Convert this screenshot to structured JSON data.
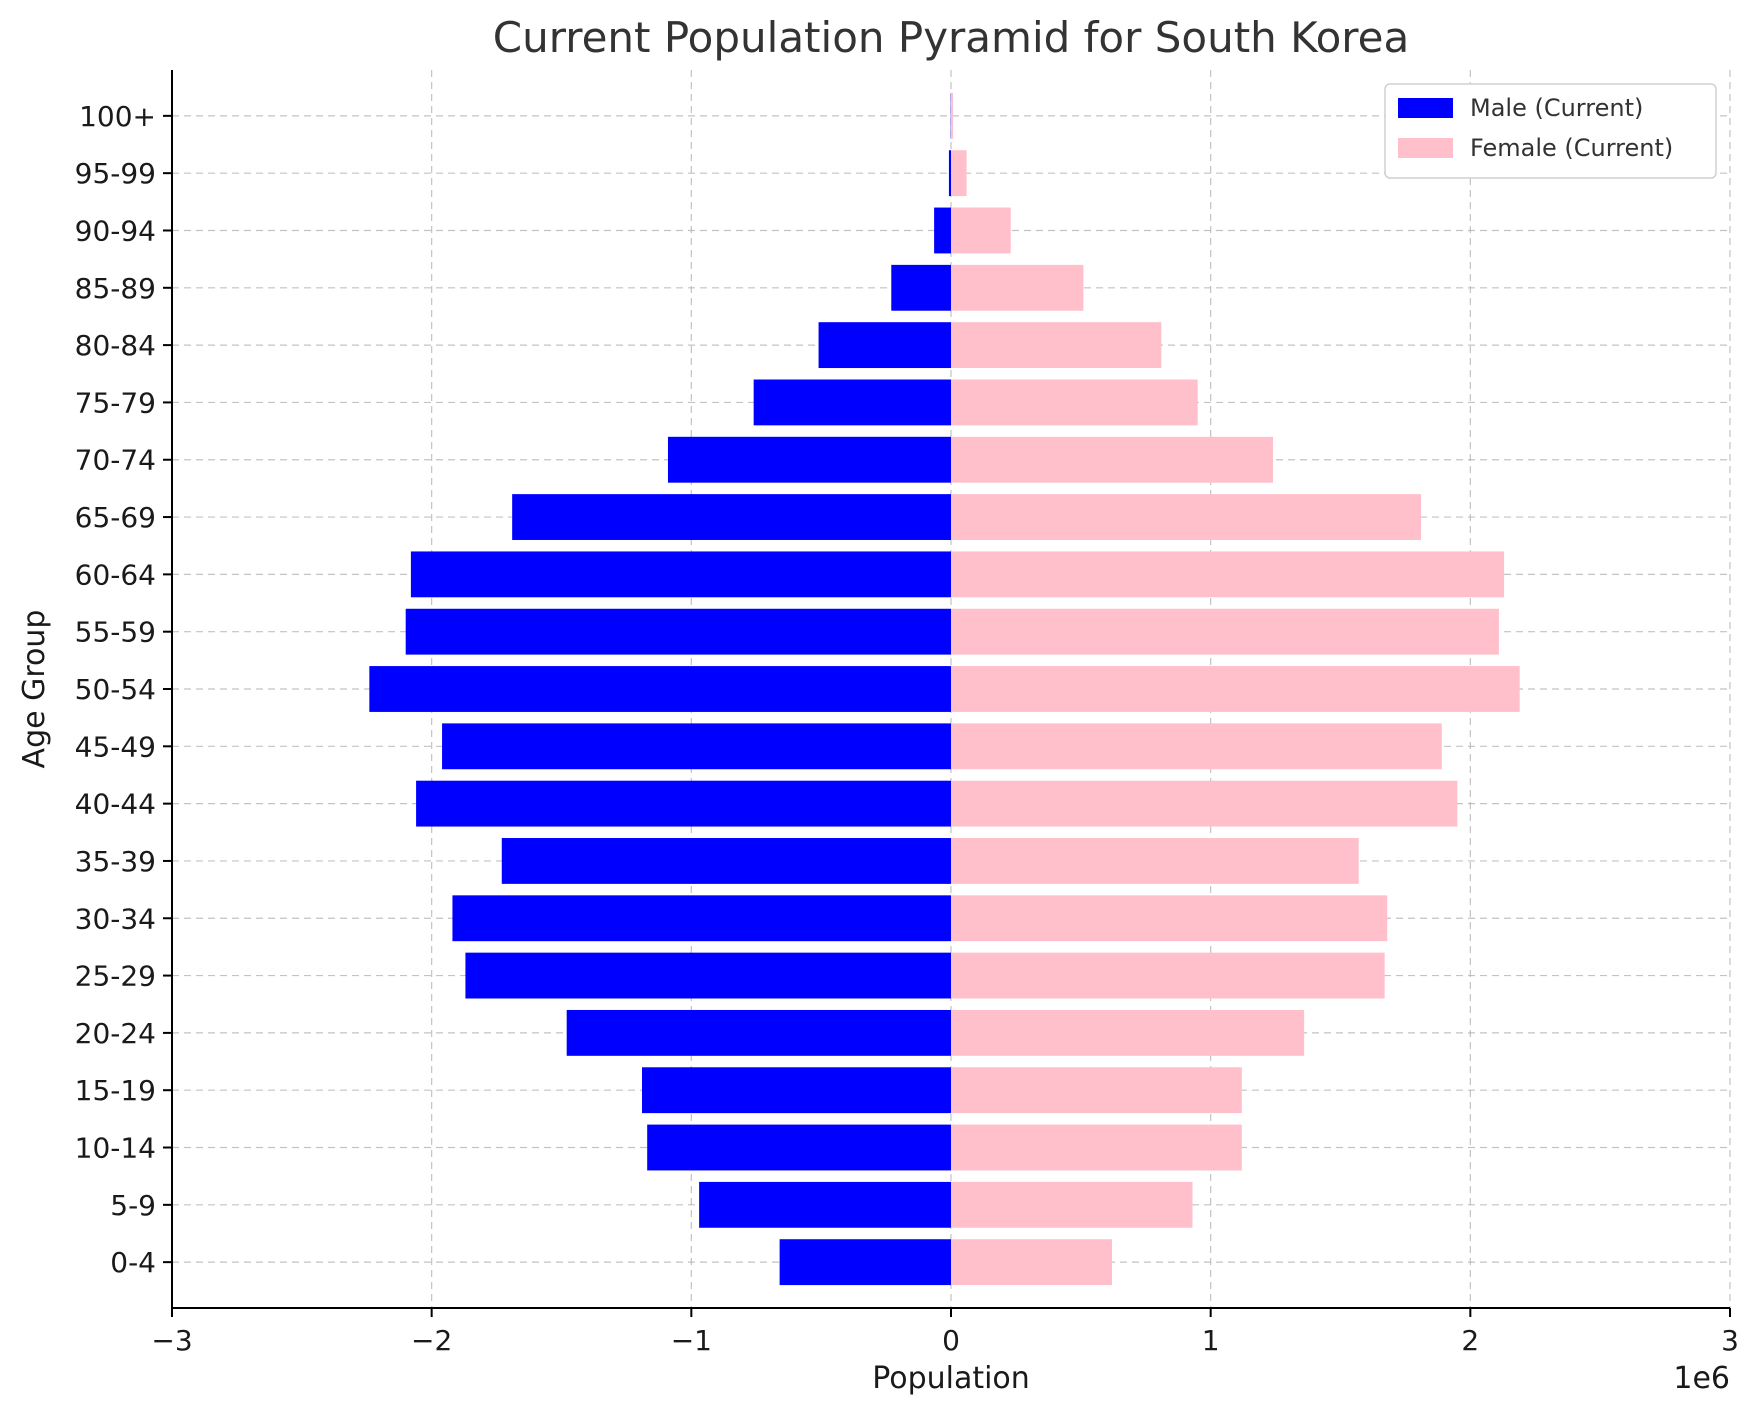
{
  "chart_data": {
    "type": "bar",
    "orientation": "horizontal",
    "title": "Current Population Pyramid for South Korea",
    "xlabel": "Population",
    "ylabel": "Age Group",
    "x_offset_text": "1e6",
    "xlim": [
      -3000000,
      3000000
    ],
    "xticks": [
      -3000000,
      -2000000,
      -1000000,
      0,
      1000000,
      2000000,
      3000000
    ],
    "xtick_labels": [
      "−3",
      "−2",
      "−1",
      "0",
      "1",
      "2",
      "3"
    ],
    "grid": true,
    "legend_position": "top-right",
    "categories": [
      "0-4",
      "5-9",
      "10-14",
      "15-19",
      "20-24",
      "25-29",
      "30-34",
      "35-39",
      "40-44",
      "45-49",
      "50-54",
      "55-59",
      "60-64",
      "65-69",
      "70-74",
      "75-79",
      "80-84",
      "85-89",
      "90-94",
      "95-99",
      "100+"
    ],
    "series": [
      {
        "name": "Male (Current)",
        "color": "#0000ff",
        "values": [
          -660000,
          -970000,
          -1170000,
          -1190000,
          -1480000,
          -1870000,
          -1920000,
          -1730000,
          -2060000,
          -1960000,
          -2240000,
          -2100000,
          -2080000,
          -1690000,
          -1090000,
          -760000,
          -510000,
          -230000,
          -65000,
          -8000,
          -1000
        ]
      },
      {
        "name": "Female (Current)",
        "color": "#ffc0cb",
        "values": [
          620000,
          930000,
          1120000,
          1120000,
          1360000,
          1670000,
          1680000,
          1570000,
          1950000,
          1890000,
          2190000,
          2110000,
          2130000,
          1810000,
          1240000,
          950000,
          810000,
          510000,
          230000,
          60000,
          8000
        ]
      }
    ]
  }
}
